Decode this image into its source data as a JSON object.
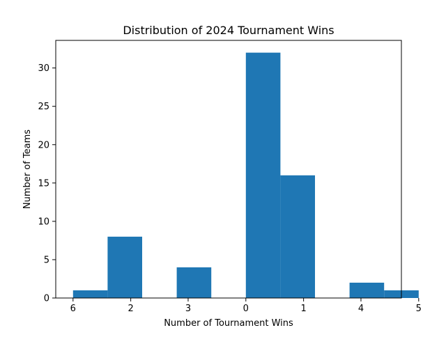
{
  "chart_data": {
    "type": "bar",
    "title": "Distribution of 2024 Tournament Wins",
    "xlabel": "Number of Tournament Wins",
    "ylabel": "Number of Teams",
    "ylim": [
      0,
      33.6
    ],
    "xlim": [
      -0.5,
      9.5
    ],
    "yticks": [
      0,
      5,
      10,
      15,
      20,
      25,
      30
    ],
    "xticks": [
      {
        "pos": 0.0,
        "label": "6"
      },
      {
        "pos": 1.67,
        "label": "2"
      },
      {
        "pos": 3.33,
        "label": "3"
      },
      {
        "pos": 5.0,
        "label": "0"
      },
      {
        "pos": 6.67,
        "label": "1"
      },
      {
        "pos": 8.33,
        "label": "4"
      },
      {
        "pos": 10.0,
        "label": "5"
      }
    ],
    "bins": [
      {
        "start": 0,
        "end": 1,
        "value": 1
      },
      {
        "start": 1,
        "end": 2,
        "value": 8
      },
      {
        "start": 2,
        "end": 3,
        "value": 0
      },
      {
        "start": 3,
        "end": 4,
        "value": 4
      },
      {
        "start": 4,
        "end": 5,
        "value": 0
      },
      {
        "start": 5,
        "end": 6,
        "value": 32
      },
      {
        "start": 6,
        "end": 7,
        "value": 16
      },
      {
        "start": 7,
        "end": 8,
        "value": 0
      },
      {
        "start": 8,
        "end": 9,
        "value": 2
      },
      {
        "start": 9,
        "end": 10,
        "value": 1
      }
    ],
    "bar_color": "#1f77b4",
    "grid": false,
    "legend": "none"
  }
}
